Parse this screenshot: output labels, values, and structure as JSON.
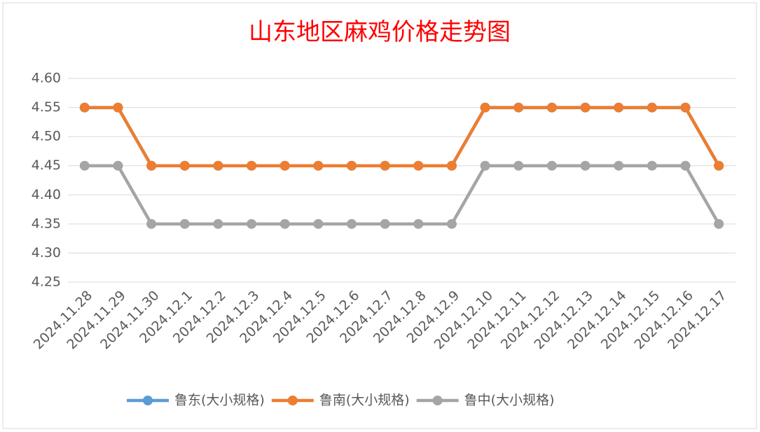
{
  "chart_data": {
    "type": "line",
    "title": "山东地区麻鸡价格走势图",
    "categories": [
      "2024.11.28",
      "2024.11.29",
      "2024.11.30",
      "2024.12.1",
      "2024.12.2",
      "2024.12.3",
      "2024.12.4",
      "2024.12.5",
      "2024.12.6",
      "2024.12.7",
      "2024.12.8",
      "2024.12.9",
      "2024.12.10",
      "2024.12.11",
      "2024.12.12",
      "2024.12.13",
      "2024.12.14",
      "2024.12.15",
      "2024.12.16",
      "2024.12.17"
    ],
    "series": [
      {
        "name": "鲁东(大小规格)",
        "color": "#5b9bd5",
        "values": [
          4.55,
          4.55,
          4.45,
          4.45,
          4.45,
          4.45,
          4.45,
          4.45,
          4.45,
          4.45,
          4.45,
          4.45,
          4.55,
          4.55,
          4.55,
          4.55,
          4.55,
          4.55,
          4.55,
          4.45
        ]
      },
      {
        "name": "鲁南(大小规格)",
        "color": "#ed7d31",
        "values": [
          4.55,
          4.55,
          4.45,
          4.45,
          4.45,
          4.45,
          4.45,
          4.45,
          4.45,
          4.45,
          4.45,
          4.45,
          4.55,
          4.55,
          4.55,
          4.55,
          4.55,
          4.55,
          4.55,
          4.45
        ]
      },
      {
        "name": "鲁中(大小规格)",
        "color": "#a5a5a5",
        "values": [
          4.45,
          4.45,
          4.35,
          4.35,
          4.35,
          4.35,
          4.35,
          4.35,
          4.35,
          4.35,
          4.35,
          4.35,
          4.45,
          4.45,
          4.45,
          4.45,
          4.45,
          4.45,
          4.45,
          4.35
        ]
      }
    ],
    "ylim": [
      4.25,
      4.6
    ],
    "yticks": [
      4.25,
      {
        "value": 4.3,
        "label": "4.30"
      },
      4.35,
      {
        "value": 4.4,
        "label": "4.40"
      },
      4.45,
      {
        "value": 4.5,
        "label": "4.50"
      },
      4.55,
      {
        "value": 4.6,
        "label": "4.60"
      }
    ],
    "grid": true,
    "legend": "bottom"
  }
}
